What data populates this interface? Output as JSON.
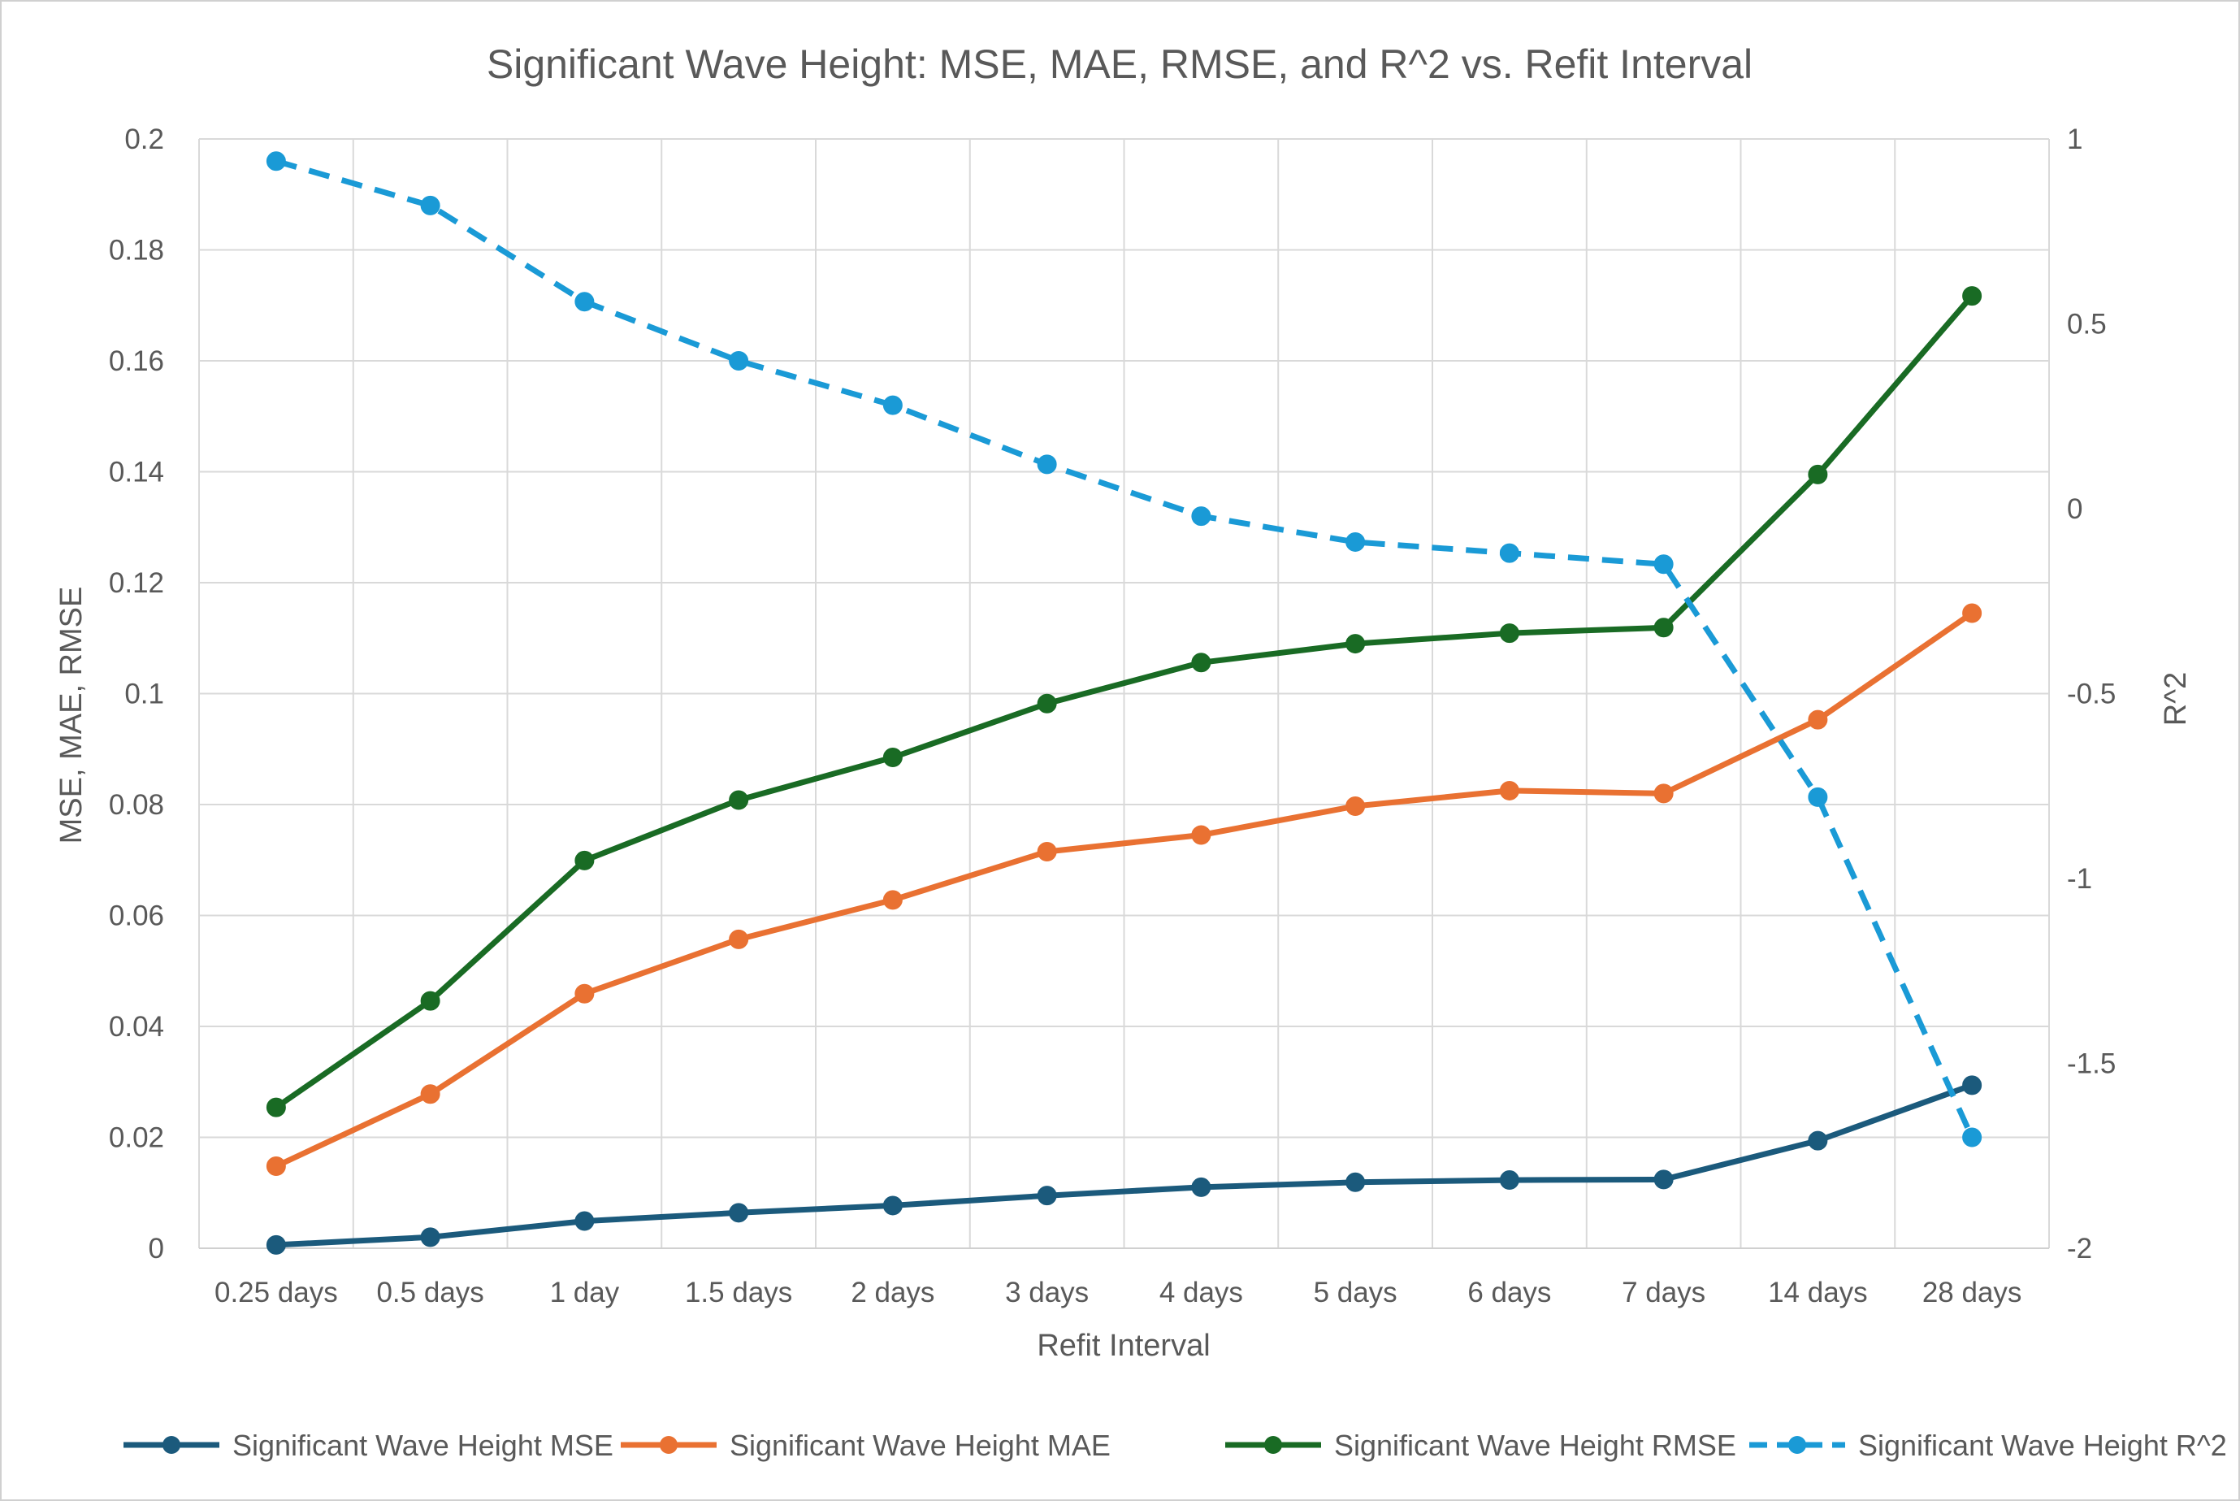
{
  "chart_data": {
    "type": "line",
    "title": "Significant Wave Height: MSE, MAE, RMSE, and R^2 vs. Refit Interval",
    "xlabel": "Refit Interval",
    "ylabel": "MSE, MAE, RMSE",
    "y2label": "R^2",
    "categories": [
      "0.25 days",
      "0.5 days",
      "1 day",
      "1.5 days",
      "2 days",
      "3 days",
      "4 days",
      "5 days",
      "6 days",
      "7 days",
      "14 days",
      "28 days"
    ],
    "ylim": [
      0,
      0.2
    ],
    "y_ticks": [
      "0",
      "0.02",
      "0.04",
      "0.06",
      "0.08",
      "0.1",
      "0.12",
      "0.14",
      "0.16",
      "0.18",
      "0.2"
    ],
    "y2lim": [
      -2,
      1
    ],
    "y2_ticks": [
      "-2",
      "-1.5",
      "-1",
      "-0.5",
      "0",
      "0.5",
      "1"
    ],
    "grid": true,
    "legend_position": "bottom",
    "series": [
      {
        "name": "Significant Wave Height MSE",
        "axis": "left",
        "color": "#1b5a7c",
        "dash": "solid",
        "values": [
          0.0006,
          0.002,
          0.0049,
          0.0064,
          0.0077,
          0.0095,
          0.011,
          0.0119,
          0.0123,
          0.0124,
          0.0194,
          0.0294
        ]
      },
      {
        "name": "Significant Wave Height MAE",
        "axis": "left",
        "color": "#e97132",
        "dash": "solid",
        "values": [
          0.0148,
          0.0278,
          0.0459,
          0.0557,
          0.0628,
          0.0715,
          0.0745,
          0.0797,
          0.0825,
          0.082,
          0.0953,
          0.1145
        ]
      },
      {
        "name": "Significant Wave Height RMSE",
        "axis": "left",
        "color": "#196b24",
        "dash": "solid",
        "values": [
          0.0254,
          0.0446,
          0.0699,
          0.0808,
          0.0885,
          0.0982,
          0.1056,
          0.109,
          0.1109,
          0.1119,
          0.1395,
          0.1717
        ]
      },
      {
        "name": "Significant Wave Height R^2",
        "axis": "right",
        "color": "#1a9ad6",
        "dash": "dashed",
        "values": [
          0.94,
          0.82,
          0.56,
          0.4,
          0.28,
          0.12,
          -0.02,
          -0.09,
          -0.12,
          -0.15,
          -0.78,
          -1.7
        ]
      }
    ]
  }
}
